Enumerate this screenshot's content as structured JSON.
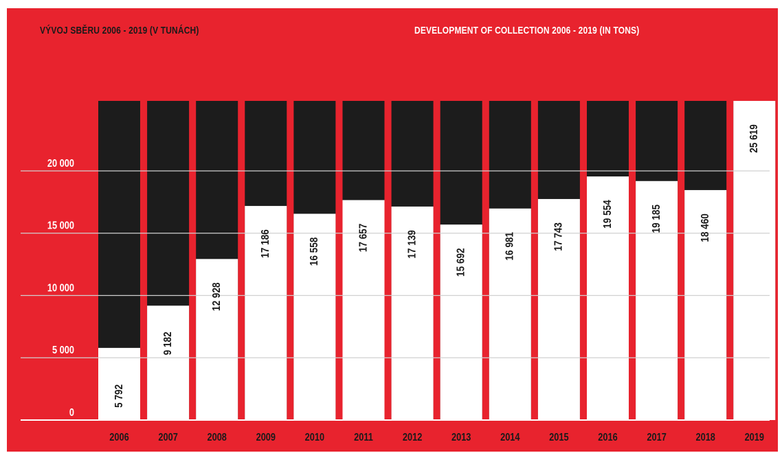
{
  "header": {
    "title_cz": "VÝVOJ SBĚRU 2006 - 2019 (V TUNÁCH)",
    "title_en": "DEVELOPMENT OF COLLECTION 2006 - 2019 (IN TONS)"
  },
  "colors": {
    "background": "#e8232e",
    "bar_value": "#ffffff",
    "bar_remainder": "#1c1c1c",
    "text_dark": "#1a1a1a",
    "text_light": "#ffffff"
  },
  "chart_data": {
    "type": "bar",
    "title": "VÝVOJ SBĚRU 2006 - 2019 (V TUNÁCH)",
    "subtitle": "DEVELOPMENT OF COLLECTION 2006 - 2019 (IN TONS)",
    "xlabel": "",
    "ylabel": "",
    "categories": [
      "2006",
      "2007",
      "2008",
      "2009",
      "2010",
      "2011",
      "2012",
      "2013",
      "2014",
      "2015",
      "2016",
      "2017",
      "2018",
      "2019"
    ],
    "values": [
      5792,
      9182,
      12928,
      17186,
      16558,
      17657,
      17139,
      15692,
      16981,
      17743,
      19554,
      19185,
      18460,
      25619
    ],
    "value_labels": [
      "5 792",
      "9 182",
      "12 928",
      "17 186",
      "16 558",
      "17 657",
      "17 139",
      "15 692",
      "16 981",
      "17 743",
      "19 554",
      "19 185",
      "18 460",
      "25 619"
    ],
    "yticks": [
      0,
      5000,
      10000,
      15000,
      20000
    ],
    "ytick_labels": [
      "0",
      "5 000",
      "10 000",
      "15 000",
      "20 000"
    ],
    "ylim": [
      0,
      25619
    ],
    "grid": true,
    "legend": "none"
  }
}
